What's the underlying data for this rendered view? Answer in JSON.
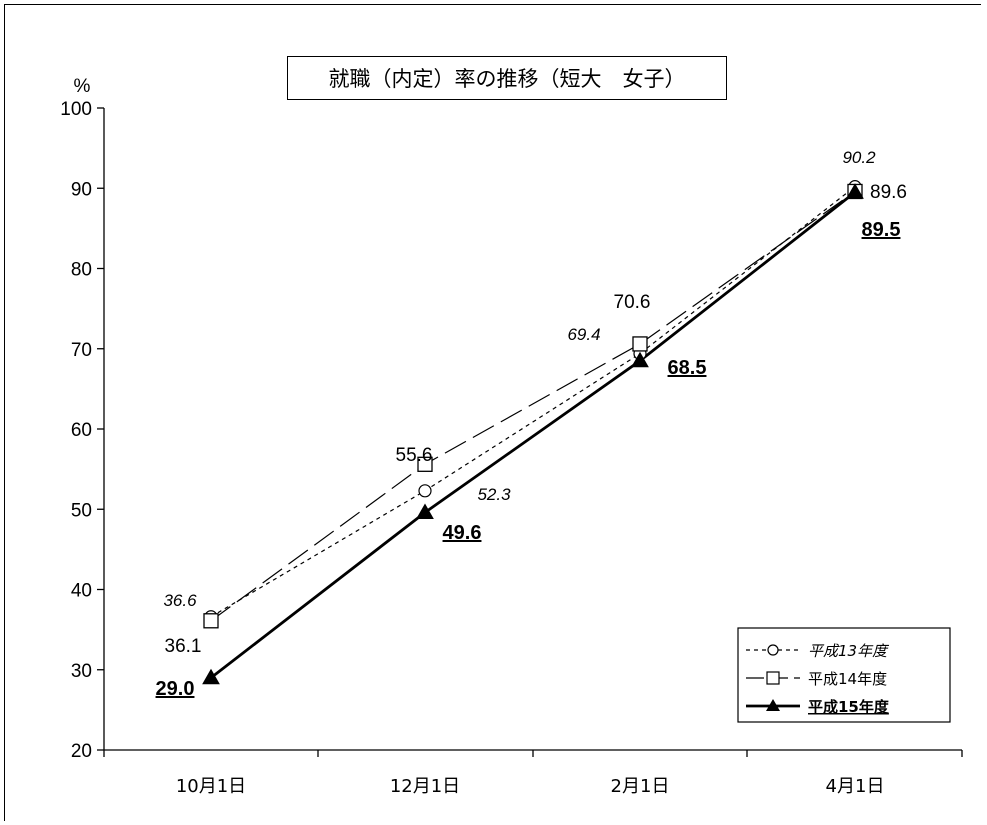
{
  "chart_data": {
    "type": "line",
    "title": "就職（内定）率の推移（短大　女子）",
    "ylabel": "%",
    "categories": [
      "10月1日",
      "12月1日",
      "2月1日",
      "4月1日"
    ],
    "y_ticks": [
      20,
      30,
      40,
      50,
      60,
      70,
      80,
      90,
      100
    ],
    "ylim": [
      20,
      100
    ],
    "legend_position": "bottom-right",
    "grid": false,
    "series": [
      {
        "name": "平成13年度",
        "values": [
          36.6,
          52.3,
          69.4,
          90.2
        ],
        "labels": [
          "36.6",
          "52.3",
          "69.4",
          "90.2"
        ],
        "style": "dotted",
        "marker": "circle-open"
      },
      {
        "name": "平成14年度",
        "values": [
          36.1,
          55.6,
          70.6,
          89.6
        ],
        "labels": [
          "36.1",
          "55.6",
          "70.6",
          "89.6"
        ],
        "style": "dashed",
        "marker": "square-open"
      },
      {
        "name": "平成15年度",
        "values": [
          29.0,
          49.6,
          68.5,
          89.5
        ],
        "labels": [
          "29.0",
          "49.6",
          "68.5",
          "89.5"
        ],
        "style": "solid-bold",
        "marker": "triangle-filled"
      }
    ]
  }
}
